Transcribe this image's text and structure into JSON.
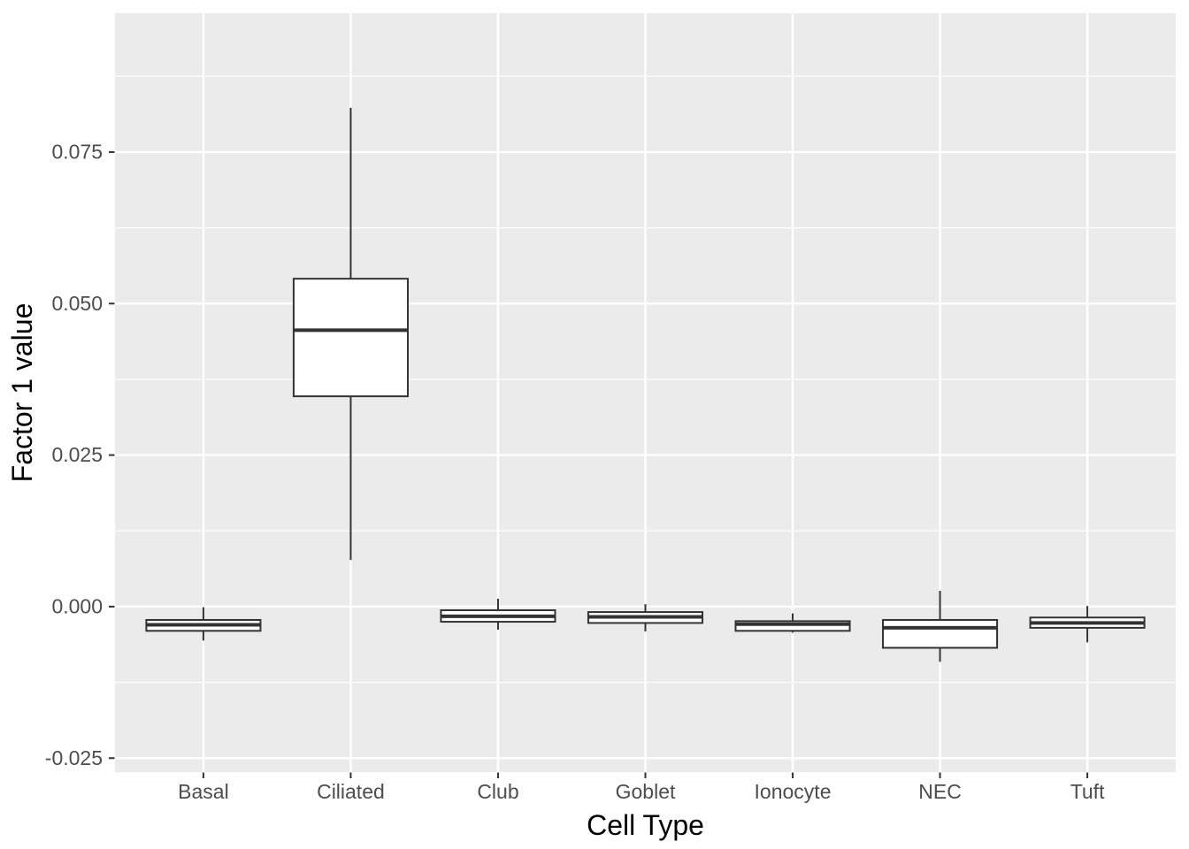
{
  "chart_data": {
    "type": "boxplot",
    "title": "",
    "xlabel": "Cell Type",
    "ylabel": "Factor 1 value",
    "categories": [
      "Basal",
      "Ciliated",
      "Club",
      "Goblet",
      "Ionocyte",
      "NEC",
      "Tuft"
    ],
    "boxes": [
      {
        "category": "Basal",
        "whisker_low": -0.0056,
        "q1": -0.004,
        "median": -0.003,
        "q3": -0.0022,
        "whisker_high": -0.0001
      },
      {
        "category": "Ciliated",
        "whisker_low": 0.0077,
        "q1": 0.0347,
        "median": 0.0456,
        "q3": 0.0541,
        "whisker_high": 0.0823
      },
      {
        "category": "Club",
        "whisker_low": -0.0038,
        "q1": -0.0025,
        "median": -0.0016,
        "q3": -0.0006,
        "whisker_high": 0.0013
      },
      {
        "category": "Goblet",
        "whisker_low": -0.0041,
        "q1": -0.0027,
        "median": -0.0017,
        "q3": -0.0009,
        "whisker_high": 0.0004
      },
      {
        "category": "Ionocyte",
        "whisker_low": -0.0043,
        "q1": -0.004,
        "median": -0.0029,
        "q3": -0.0024,
        "whisker_high": -0.0011
      },
      {
        "category": "NEC",
        "whisker_low": -0.0091,
        "q1": -0.0068,
        "median": -0.0035,
        "q3": -0.0022,
        "whisker_high": 0.0026
      },
      {
        "category": "Tuft",
        "whisker_low": -0.0059,
        "q1": -0.0035,
        "median": -0.0027,
        "q3": -0.0018,
        "whisker_high": 0.0001
      }
    ],
    "y_ticks": [
      {
        "value": -0.025,
        "label": "-0.025"
      },
      {
        "value": 0.0,
        "label": "0.000"
      },
      {
        "value": 0.025,
        "label": "0.025"
      },
      {
        "value": 0.05,
        "label": "0.050"
      },
      {
        "value": 0.075,
        "label": "0.075"
      }
    ],
    "y_minor_ticks": [
      -0.0125,
      0.0125,
      0.0375,
      0.0625,
      0.0875
    ],
    "ylim": [
      -0.0273,
      0.0979
    ],
    "grid": "on",
    "legend": "none",
    "style": {
      "panel_bg": "#EBEBEB",
      "grid_color": "#FFFFFF",
      "box_stroke": "#333333",
      "box_fill": "#FFFFFF",
      "tick_color": "#333333",
      "tick_label_color": "#4D4D4D",
      "axis_title_color": "#000000"
    }
  }
}
